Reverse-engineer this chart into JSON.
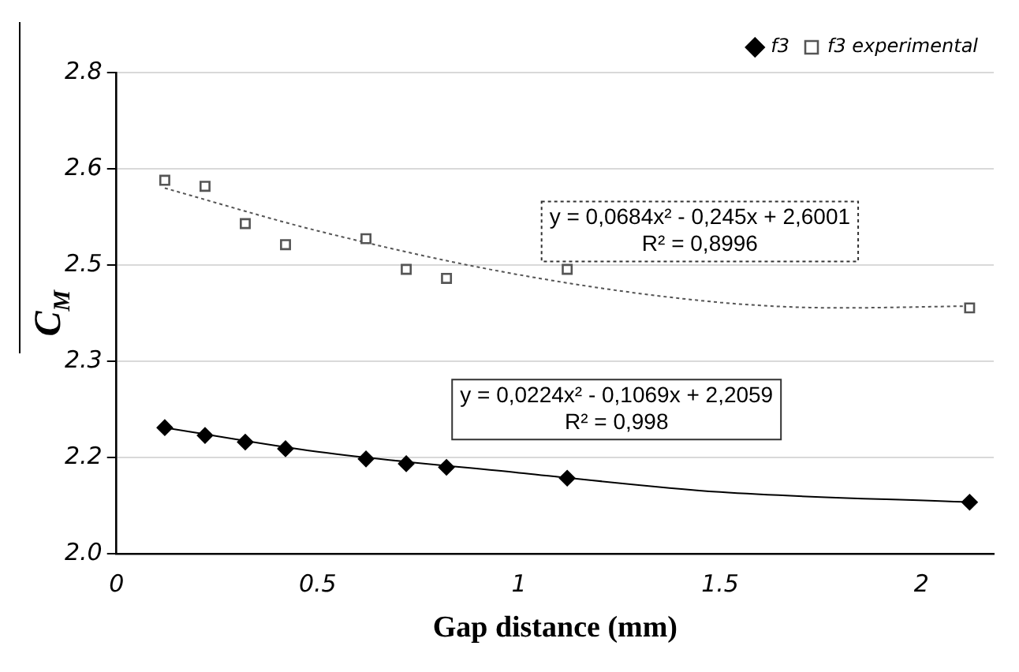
{
  "chart_data": {
    "type": "scatter",
    "xlabel": "Gap distance (mm)",
    "ylabel": "C$_{M}$",
    "xlim": [
      0,
      2.18
    ],
    "xticks": [
      0,
      0.5,
      1,
      1.5,
      2
    ],
    "ylim": [
      2.0,
      2.8
    ],
    "yticks": [
      {
        "value": 2.0,
        "label": "2.0"
      },
      {
        "value": 2.16,
        "label": "2.2"
      },
      {
        "value": 2.32,
        "label": "2.3"
      },
      {
        "value": 2.48,
        "label": "2.5"
      },
      {
        "value": 2.64,
        "label": "2.6"
      },
      {
        "value": 2.8,
        "label": "2.8"
      }
    ],
    "grid": "y",
    "legend": "top right",
    "series": [
      {
        "type": "line",
        "color": "#000000",
        "line_style": "solid",
        "marker": "none",
        "x": [
          0.12,
          0.5,
          1.0,
          1.5,
          2.12
        ],
        "values": [
          2.21,
          2.17,
          2.135,
          2.103,
          2.086
        ]
      },
      {
        "type": "line",
        "color": "#555555",
        "line_style": "dotted",
        "marker": "none",
        "x": [
          0.12,
          0.5,
          1.0,
          1.5,
          1.8,
          2.12
        ],
        "values": [
          2.608,
          2.537,
          2.464,
          2.418,
          2.409,
          2.412
        ]
      },
      {
        "name": "f3",
        "type": "scatter",
        "color": "#000000",
        "marker": "diamond",
        "x": [
          0.12,
          0.22,
          0.32,
          0.42,
          0.62,
          0.72,
          0.82,
          1.12,
          2.12
        ],
        "values": [
          2.21,
          2.197,
          2.186,
          2.175,
          2.158,
          2.15,
          2.144,
          2.126,
          2.086
        ]
      },
      {
        "name": "f3 experimental",
        "type": "scatter",
        "color": "#555555",
        "marker": "square",
        "x": [
          0.12,
          0.22,
          0.32,
          0.42,
          0.62,
          0.72,
          0.82,
          1.12,
          2.12
        ],
        "values": [
          2.621,
          2.611,
          2.549,
          2.514,
          2.524,
          2.473,
          2.458,
          2.473,
          2.409
        ]
      }
    ],
    "annotations": [
      "y = 0,0684x² - 0,245x + 2,6001\nR² = 0,8996",
      "y = 0,0224x² - 0,1069x + 2,2059\nR² = 0,998"
    ]
  }
}
